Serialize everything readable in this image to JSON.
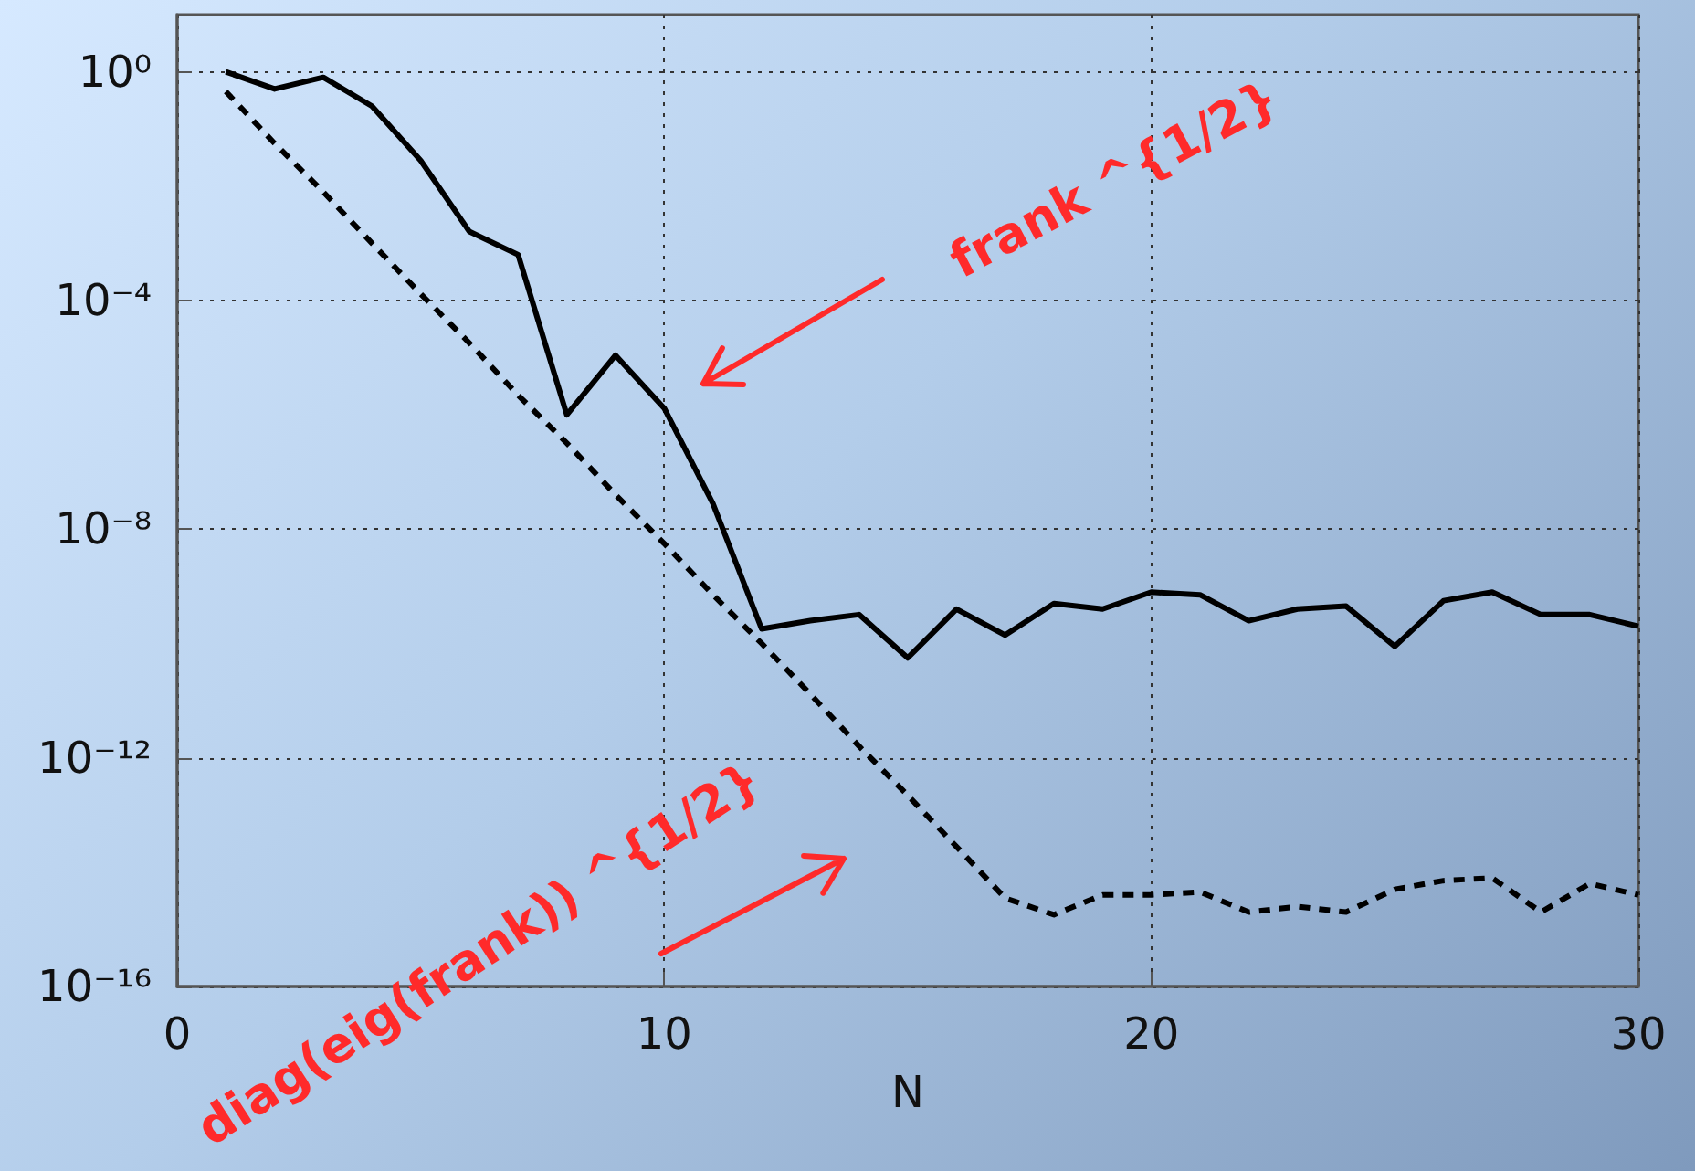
{
  "chart_data": {
    "type": "line",
    "xlabel": "N",
    "x": [
      1,
      2,
      3,
      4,
      5,
      6,
      7,
      8,
      9,
      10,
      11,
      12,
      13,
      14,
      15,
      16,
      17,
      18,
      19,
      20,
      21,
      22,
      23,
      24,
      25,
      26,
      27,
      28,
      29,
      30
    ],
    "series": [
      {
        "color": "#000000",
        "line_style": "solid",
        "values": [
          1,
          0.5,
          0.8,
          0.25,
          0.028,
          0.0016,
          0.00063,
          1e-06,
          1.1e-05,
          1.3e-06,
          2.8e-08,
          1.8e-10,
          2.5e-10,
          3.2e-10,
          5.6e-11,
          4e-10,
          1.4e-10,
          5e-10,
          4e-10,
          7.9e-10,
          7.1e-10,
          2.5e-10,
          4e-10,
          4.5e-10,
          8.9e-11,
          5.6e-10,
          7.9e-10,
          3.2e-10,
          3.2e-10,
          2e-10
        ]
      },
      {
        "color": "#000000",
        "line_style": "dashed",
        "values": [
          0.45,
          0.056,
          0.0079,
          0.001,
          0.00013,
          1.8e-05,
          2.2e-06,
          3.2e-07,
          4e-08,
          5.6e-09,
          7.1e-10,
          1e-10,
          1.3e-11,
          1.6e-12,
          2.2e-13,
          2.8e-14,
          3.5e-15,
          1.8e-15,
          4e-15,
          4e-15,
          4.5e-15,
          2e-15,
          2.5e-15,
          2e-15,
          5e-15,
          7.1e-15,
          7.9e-15,
          2e-15,
          6.3e-15,
          4e-15
        ]
      }
    ],
    "annotations": [
      "frank ^{1/2}",
      "diag(eig(frank)) ^{1/2}"
    ],
    "log": "y",
    "xlim": [
      0,
      30
    ],
    "xticks": [
      0,
      10,
      20,
      30
    ],
    "ylim": [
      1e-16,
      10
    ],
    "yticks": [
      {
        "value": 1e-16,
        "label": "10⁻¹⁶"
      },
      {
        "value": 1e-12,
        "label": "10⁻¹²"
      },
      {
        "value": 1e-08,
        "label": "10⁻⁸"
      },
      {
        "value": 0.0001,
        "label": "10⁻⁴"
      },
      {
        "value": 1,
        "label": "10⁰"
      }
    ],
    "grid": true,
    "marker": "none"
  }
}
